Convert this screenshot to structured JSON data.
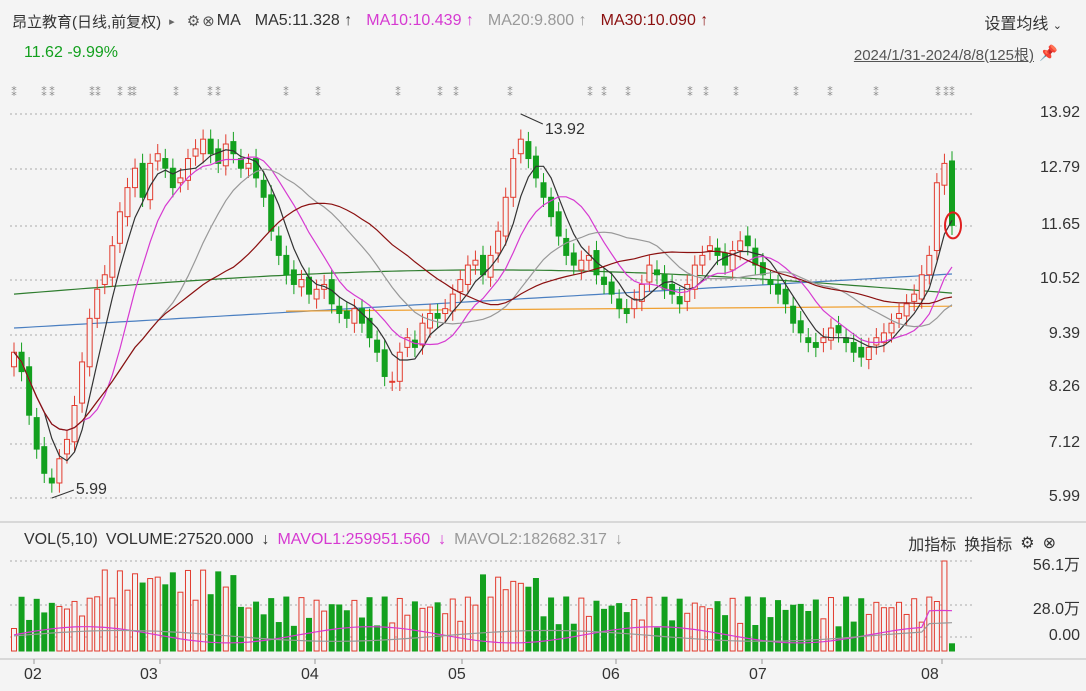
{
  "header": {
    "stock_name": "昂立教育(日线,前复权)",
    "ma_label": "MA",
    "ma5": "MA5:11.328",
    "ma10": "MA10:10.439",
    "ma20": "MA20:9.800",
    "ma30": "MA30:10.090",
    "arrow": "↑",
    "price": "11.62",
    "change": "-9.99%",
    "settings_label": "设置均线",
    "date_range": "2024/1/31-2024/8/8(125根)"
  },
  "volume": {
    "title": "VOL(5,10)",
    "volume": "VOLUME:27520.000",
    "mavol1": "MAVOL1:259951.560",
    "mavol2": "MAVOL2:182682.317",
    "down_arrow": "↓",
    "add_indicator": "加指标",
    "switch_indicator": "换指标",
    "axis": [
      "56.1万",
      "28.0万",
      "0.00"
    ]
  },
  "price_axis": [
    "13.92",
    "12.79",
    "11.65",
    "10.52",
    "9.39",
    "8.26",
    "7.12",
    "5.99"
  ],
  "x_labels": [
    "02",
    "03",
    "04",
    "05",
    "06",
    "07",
    "08"
  ],
  "annotations": {
    "high": "13.92",
    "low": "5.99"
  },
  "colors": {
    "up": "#e23b2e",
    "down": "#13a01e",
    "ma5": "#333333",
    "ma10": "#d63ad1",
    "ma20": "#999999",
    "ma30": "#8b1010"
  },
  "icons": {
    "gear": "gear-icon",
    "close": "close-icon",
    "pin": "pin-icon",
    "chevron": "chevron-down-icon"
  }
}
